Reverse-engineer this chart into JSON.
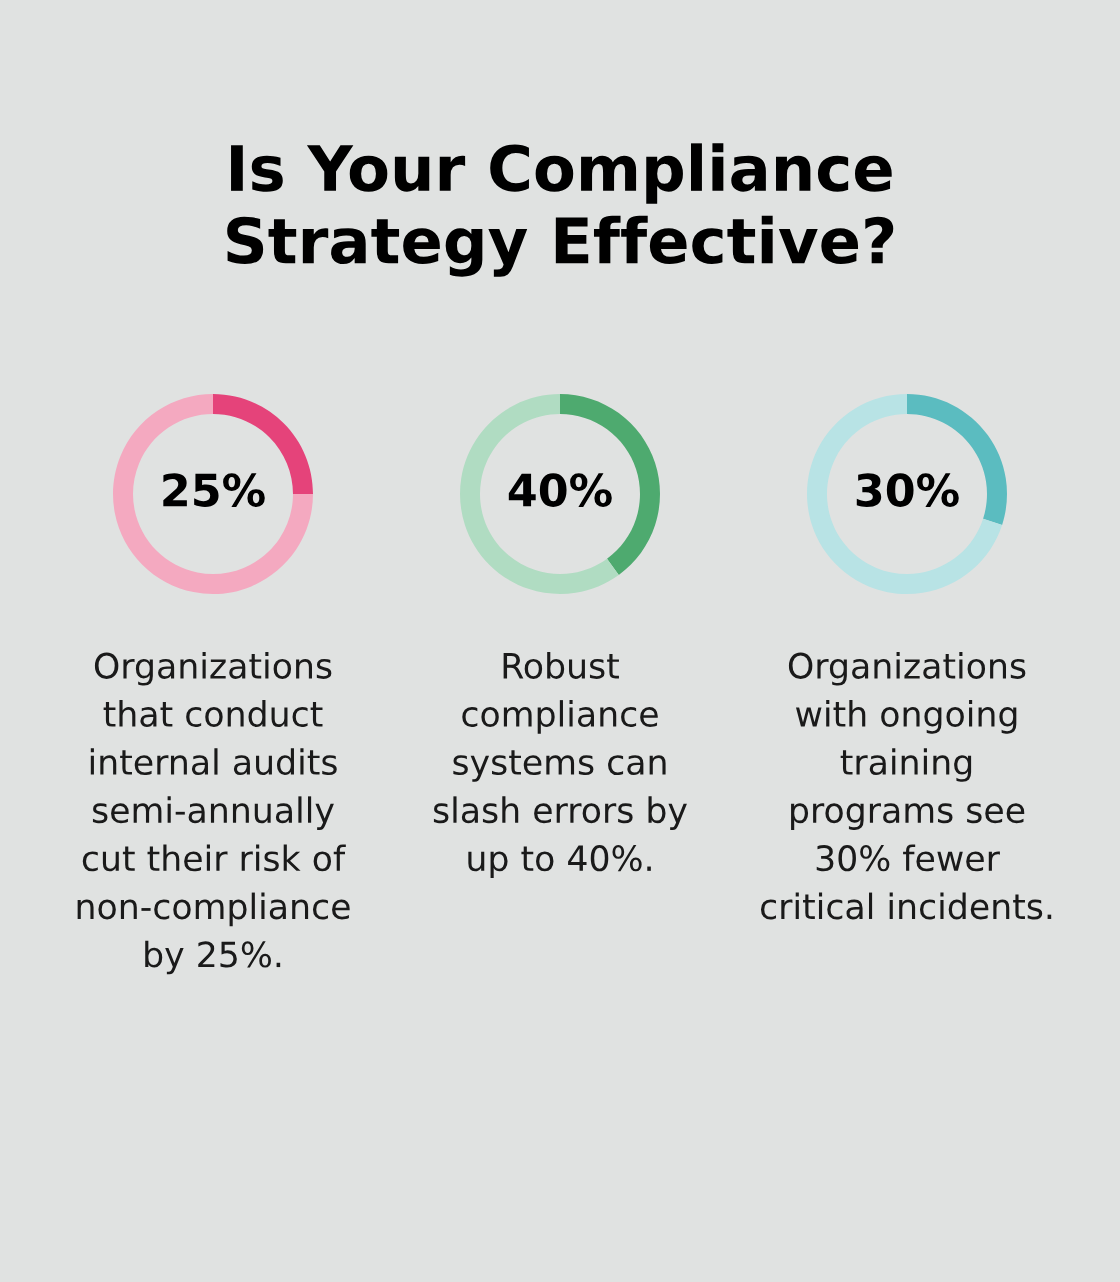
{
  "chart_data": [
    {
      "type": "donut",
      "title": "Is Your Compliance Strategy Effective?",
      "categories": [
        null,
        null
      ],
      "values": [
        25,
        75
      ],
      "colors": [
        "#e5437a",
        "#f4a9c0"
      ],
      "value_labels": [
        "25%",
        null
      ],
      "annotations": [
        "Organizations that conduct internal audits semi-annually cut their risk of non-compliance by 25%."
      ]
    },
    {
      "type": "donut",
      "categories": [
        null,
        null
      ],
      "values": [
        40,
        60
      ],
      "colors": [
        "#4eaa6f",
        "#b0dcc2"
      ],
      "value_labels": [
        "40%",
        null
      ],
      "annotations": [
        "Robust compliance systems can slash errors by up to 40%."
      ]
    },
    {
      "type": "donut",
      "categories": [
        null,
        null
      ],
      "values": [
        30,
        70
      ],
      "colors": [
        "#5bbcc0",
        "#b8e3e5"
      ],
      "value_labels": [
        "30%",
        null
      ],
      "annotations": [
        "Organizations with ongoing training programs see 30% fewer critical incidents."
      ]
    }
  ]
}
